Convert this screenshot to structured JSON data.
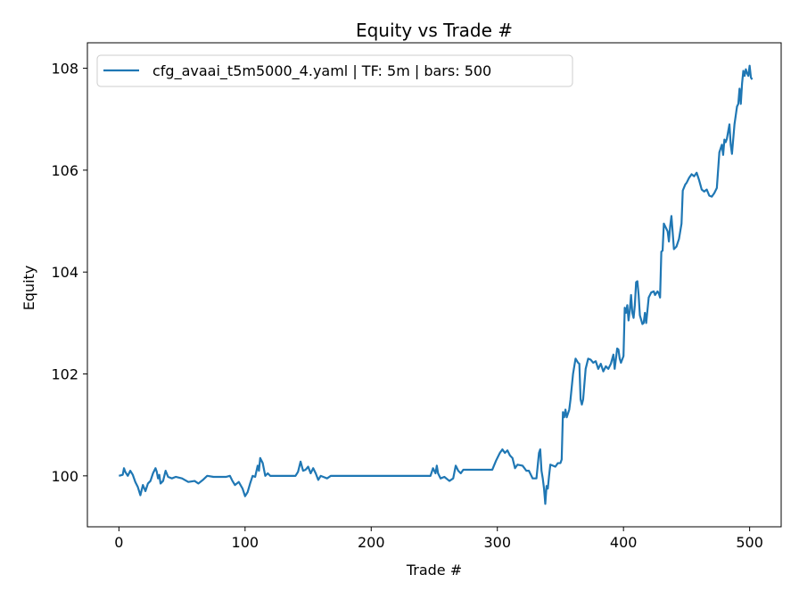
{
  "chart_data": {
    "type": "line",
    "title": "Equity vs Trade #",
    "xlabel": "Trade #",
    "ylabel": "Equity",
    "xlim": [
      -25,
      525
    ],
    "ylim": [
      99.0,
      108.5
    ],
    "xticks": [
      0,
      100,
      200,
      300,
      400,
      500
    ],
    "yticks": [
      100,
      102,
      104,
      106,
      108
    ],
    "grid": false,
    "legend_position": "top-left",
    "series": [
      {
        "name": "cfg_avaai_t5m5000_4.yaml | TF: 5m | bars: 500",
        "color": "#1f77b4",
        "points": [
          [
            0,
            100.0
          ],
          [
            3,
            100.02
          ],
          [
            4,
            100.15
          ],
          [
            5,
            100.08
          ],
          [
            7,
            100.0
          ],
          [
            9,
            100.1
          ],
          [
            11,
            100.02
          ],
          [
            13,
            99.88
          ],
          [
            15,
            99.78
          ],
          [
            17,
            99.62
          ],
          [
            19,
            99.82
          ],
          [
            21,
            99.7
          ],
          [
            23,
            99.85
          ],
          [
            25,
            99.9
          ],
          [
            27,
            100.05
          ],
          [
            29,
            100.15
          ],
          [
            30,
            100.08
          ],
          [
            31,
            99.95
          ],
          [
            32,
            100.02
          ],
          [
            33,
            99.85
          ],
          [
            35,
            99.9
          ],
          [
            37,
            100.1
          ],
          [
            39,
            99.98
          ],
          [
            42,
            99.95
          ],
          [
            45,
            99.98
          ],
          [
            50,
            99.95
          ],
          [
            55,
            99.88
          ],
          [
            60,
            99.9
          ],
          [
            63,
            99.85
          ],
          [
            67,
            99.93
          ],
          [
            70,
            100.0
          ],
          [
            75,
            99.98
          ],
          [
            80,
            99.98
          ],
          [
            85,
            99.98
          ],
          [
            88,
            100.0
          ],
          [
            90,
            99.9
          ],
          [
            92,
            99.82
          ],
          [
            95,
            99.88
          ],
          [
            98,
            99.75
          ],
          [
            100,
            99.6
          ],
          [
            102,
            99.68
          ],
          [
            104,
            99.85
          ],
          [
            106,
            100.0
          ],
          [
            108,
            99.98
          ],
          [
            110,
            100.2
          ],
          [
            111,
            100.1
          ],
          [
            112,
            100.35
          ],
          [
            114,
            100.25
          ],
          [
            116,
            100.0
          ],
          [
            118,
            100.05
          ],
          [
            120,
            100.0
          ],
          [
            130,
            100.0
          ],
          [
            140,
            100.0
          ],
          [
            142,
            100.08
          ],
          [
            144,
            100.28
          ],
          [
            146,
            100.1
          ],
          [
            148,
            100.12
          ],
          [
            150,
            100.18
          ],
          [
            152,
            100.05
          ],
          [
            154,
            100.15
          ],
          [
            156,
            100.05
          ],
          [
            158,
            99.92
          ],
          [
            160,
            100.0
          ],
          [
            162,
            99.98
          ],
          [
            165,
            99.95
          ],
          [
            168,
            100.0
          ],
          [
            180,
            100.0
          ],
          [
            200,
            100.0
          ],
          [
            220,
            100.0
          ],
          [
            240,
            100.0
          ],
          [
            247,
            100.0
          ],
          [
            249,
            100.15
          ],
          [
            251,
            100.05
          ],
          [
            252,
            100.2
          ],
          [
            253,
            100.05
          ],
          [
            255,
            99.95
          ],
          [
            258,
            99.98
          ],
          [
            262,
            99.9
          ],
          [
            265,
            99.95
          ],
          [
            267,
            100.2
          ],
          [
            269,
            100.1
          ],
          [
            271,
            100.05
          ],
          [
            273,
            100.12
          ],
          [
            280,
            100.12
          ],
          [
            296,
            100.12
          ],
          [
            299,
            100.3
          ],
          [
            302,
            100.45
          ],
          [
            304,
            100.52
          ],
          [
            306,
            100.45
          ],
          [
            308,
            100.5
          ],
          [
            310,
            100.4
          ],
          [
            312,
            100.35
          ],
          [
            314,
            100.15
          ],
          [
            316,
            100.22
          ],
          [
            320,
            100.2
          ],
          [
            323,
            100.1
          ],
          [
            325,
            100.1
          ],
          [
            328,
            99.95
          ],
          [
            331,
            99.95
          ],
          [
            333,
            100.45
          ],
          [
            334,
            100.52
          ],
          [
            335,
            100.1
          ],
          [
            336,
            99.95
          ],
          [
            337,
            99.75
          ],
          [
            338,
            99.45
          ],
          [
            339,
            99.8
          ],
          [
            340,
            99.75
          ],
          [
            341,
            100.0
          ],
          [
            342,
            100.22
          ],
          [
            344,
            100.2
          ],
          [
            346,
            100.18
          ],
          [
            348,
            100.25
          ],
          [
            350,
            100.25
          ],
          [
            351,
            100.32
          ],
          [
            352,
            101.25
          ],
          [
            353,
            101.15
          ],
          [
            354,
            101.3
          ],
          [
            355,
            101.15
          ],
          [
            357,
            101.3
          ],
          [
            358,
            101.5
          ],
          [
            360,
            102.0
          ],
          [
            362,
            102.3
          ],
          [
            364,
            102.22
          ],
          [
            365,
            102.2
          ],
          [
            366,
            101.5
          ],
          [
            367,
            101.4
          ],
          [
            368,
            101.5
          ],
          [
            370,
            102.1
          ],
          [
            372,
            102.3
          ],
          [
            374,
            102.28
          ],
          [
            376,
            102.22
          ],
          [
            378,
            102.25
          ],
          [
            380,
            102.1
          ],
          [
            382,
            102.2
          ],
          [
            384,
            102.05
          ],
          [
            386,
            102.15
          ],
          [
            388,
            102.1
          ],
          [
            390,
            102.2
          ],
          [
            392,
            102.38
          ],
          [
            393,
            102.1
          ],
          [
            395,
            102.5
          ],
          [
            396,
            102.48
          ],
          [
            397,
            102.3
          ],
          [
            398,
            102.22
          ],
          [
            400,
            102.35
          ],
          [
            401,
            103.3
          ],
          [
            402,
            103.2
          ],
          [
            403,
            103.35
          ],
          [
            404,
            103.05
          ],
          [
            405,
            103.25
          ],
          [
            406,
            103.55
          ],
          [
            407,
            103.2
          ],
          [
            408,
            103.1
          ],
          [
            409,
            103.35
          ],
          [
            410,
            103.8
          ],
          [
            411,
            103.82
          ],
          [
            412,
            103.55
          ],
          [
            413,
            103.15
          ],
          [
            415,
            102.98
          ],
          [
            416,
            103.0
          ],
          [
            417,
            103.2
          ],
          [
            418,
            103.0
          ],
          [
            420,
            103.5
          ],
          [
            422,
            103.6
          ],
          [
            424,
            103.62
          ],
          [
            425,
            103.55
          ],
          [
            427,
            103.62
          ],
          [
            428,
            103.58
          ],
          [
            429,
            103.5
          ],
          [
            430,
            104.4
          ],
          [
            431,
            104.42
          ],
          [
            432,
            104.95
          ],
          [
            434,
            104.85
          ],
          [
            435,
            104.8
          ],
          [
            436,
            104.6
          ],
          [
            437,
            104.9
          ],
          [
            438,
            105.1
          ],
          [
            440,
            104.45
          ],
          [
            442,
            104.5
          ],
          [
            444,
            104.65
          ],
          [
            446,
            104.95
          ],
          [
            447,
            105.6
          ],
          [
            449,
            105.72
          ],
          [
            450,
            105.75
          ],
          [
            452,
            105.85
          ],
          [
            454,
            105.92
          ],
          [
            456,
            105.88
          ],
          [
            458,
            105.95
          ],
          [
            460,
            105.8
          ],
          [
            462,
            105.62
          ],
          [
            464,
            105.58
          ],
          [
            466,
            105.62
          ],
          [
            468,
            105.5
          ],
          [
            470,
            105.48
          ],
          [
            472,
            105.55
          ],
          [
            474,
            105.65
          ],
          [
            476,
            106.35
          ],
          [
            478,
            106.5
          ],
          [
            479,
            106.3
          ],
          [
            480,
            106.6
          ],
          [
            481,
            106.55
          ],
          [
            482,
            106.62
          ],
          [
            484,
            106.9
          ],
          [
            485,
            106.5
          ],
          [
            486,
            106.32
          ],
          [
            488,
            106.9
          ],
          [
            490,
            107.25
          ],
          [
            491,
            107.3
          ],
          [
            492,
            107.6
          ],
          [
            493,
            107.3
          ],
          [
            494,
            107.7
          ],
          [
            495,
            107.95
          ],
          [
            496,
            107.85
          ],
          [
            497,
            107.98
          ],
          [
            498,
            107.9
          ],
          [
            499,
            107.85
          ],
          [
            500,
            108.05
          ],
          [
            501,
            107.82
          ],
          [
            502,
            107.78
          ]
        ]
      }
    ]
  }
}
